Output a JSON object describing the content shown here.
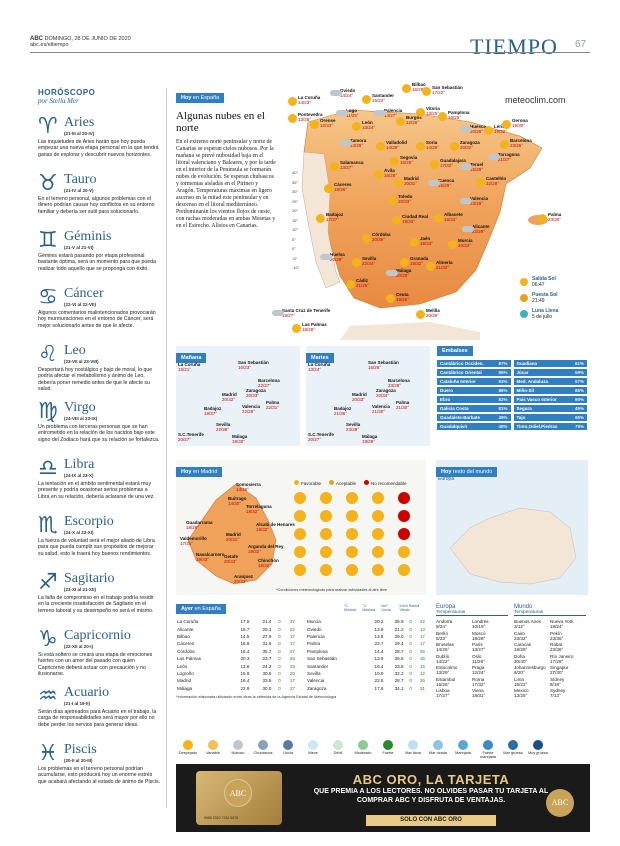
{
  "header": {
    "paper": "ABC",
    "date": "DOMINGO, 28 DE JUNIO DE 2020",
    "site": "abc.es/eltiempo",
    "section": "TIEMPO",
    "page": "67"
  },
  "horoscope": {
    "title": "HORÓSCOPO",
    "author": "por Stella Mer",
    "signs": [
      {
        "glyph": "♈",
        "name": "Aries",
        "dates": "(21-III al 20-IV)",
        "text": "Las inquietudes de Aries harán que hoy pueda empezar una nueva etapa personal en la que tendrá ganas de explorar y descubrir nuevos horizontes."
      },
      {
        "glyph": "♉",
        "name": "Tauro",
        "dates": "(21-IV al 20-V)",
        "text": "En el terreno personal, algunos problemas con el dinero podrían causar hoy conflictos en su entorno familiar y debería ser sutil para solucionarlo."
      },
      {
        "glyph": "♊",
        "name": "Géminis",
        "dates": "(21-V al 21-VI)",
        "text": "Géminis estará pasando por etapa profesional bastante óptima, será un momento para que pueda realizar todo aquello que se proponga con éxito."
      },
      {
        "glyph": "♋",
        "name": "Cáncer",
        "dates": "(22-VI al 22-VII)",
        "text": "Algunos comentarios malintencionados provocarán hoy murmuraciones en el entorno de Cáncer, será mejor solucionarlo antes de que le afecte."
      },
      {
        "glyph": "♌",
        "name": "Leo",
        "dates": "(23-VII al 23-VIII)",
        "text": "Despertará hoy nostálgico y bajo de moral, lo que podría afectar el metabolismo y ánimo de Leo, debería poner remedio antes de que le afecte su salud."
      },
      {
        "glyph": "♍",
        "name": "Virgo",
        "dates": "(24-VIII al 23-IX)",
        "text": "Un problema con terceras personas que se han entrometido en la relación de los nacidos bajo este signo del Zodiaco hará que su relación se fortalezca."
      },
      {
        "glyph": "♎",
        "name": "Libra",
        "dates": "(24-IX al 23-X)",
        "text": "La tentación en el ámbito sentimental estará muy presente y podría ocasionar serios problemas a Libra en su relación, debería aclararse de una vez."
      },
      {
        "glyph": "♏",
        "name": "Escorpio",
        "dates": "(24-X al 22-XI)",
        "text": "La fuerza de voluntad será el mejor aliado de Libra para que pueda cumplir sus propósitos de mejorar su salud, esto le traerá hoy buenos rendimientos."
      },
      {
        "glyph": "♐",
        "name": "Sagitario",
        "dates": "(23-XI al 21-XII)",
        "text": "La falta de compromiso en el trabajo podría residir en la creciente insatisfacción de Sagitario en el terreno laboral y su desempeño no será el mismo."
      },
      {
        "glyph": "♑",
        "name": "Capricornio",
        "dates": "(22-XII al 20-I)",
        "text": "Si está soltero se creará una etapa de emociones fuertes con un amor del pasado con quien Capricornio deberá actuar con precaución y no ilusionarse."
      },
      {
        "glyph": "♒",
        "name": "Acuario",
        "dates": "(21-I al 19-II)",
        "text": "Serán días ajetreados para Acuario en el trabajo, la carga de responsabilidades será mayor por ello no debe perder los nervios para generar ideas."
      },
      {
        "glyph": "♓",
        "name": "Piscis",
        "dates": "(20-II al 20-III)",
        "text": "Los problemas en el terreno personal podrían acumularse, esto producirá hoy un enorme estrés que acabará afectando al estado de ánimo de Piscis."
      }
    ]
  },
  "today": {
    "tag_a": "Hoy",
    "tag_b": "en España",
    "headline": "Algunas nubes en el norte",
    "lead": "En el extremo norte peninsular y norte de Canarias se esperan cielos nubosos. Por la mañana se prevé nubosidad baja en el litoral valenciano y Baleares, y por la tarde en el interior de la Península se formarán nubes de evolución. Se esperan chubascos y tormentas aisladas en el Pirineo y Aragón. Temperaturas máximas en ligero ascenso en la mitad este peninsular y en descenso en el litoral mediterráneo. Predominarán los vientos flojos de oeste, con rachas moderadas en ambas Mesetas y en el Estrecho. Alisios en Canarias.",
    "brand": "meteoclim.com",
    "scale": [
      "40°",
      "35°",
      "30°",
      "25°",
      "20°",
      "15°",
      "10°",
      "5°",
      "0°",
      "-5°",
      "-10°"
    ],
    "cities": [
      {
        "name": "La Coruña",
        "t": "14/23°"
      },
      {
        "name": "Oviedo",
        "t": "14/24°"
      },
      {
        "name": "Santander",
        "t": "15/22°"
      },
      {
        "name": "Bilbao",
        "t": "16/28°"
      },
      {
        "name": "San Sebastián",
        "t": "17/22°"
      },
      {
        "name": "Lugo",
        "t": "11/25°"
      },
      {
        "name": "Pontevedra",
        "t": "13/28°"
      },
      {
        "name": "Orense",
        "t": "12/33°"
      },
      {
        "name": "León",
        "t": "13/24°"
      },
      {
        "name": "Palencia",
        "t": "14/27°"
      },
      {
        "name": "Burgos",
        "t": "12/26°"
      },
      {
        "name": "Vitoria",
        "t": "13/25°"
      },
      {
        "name": "Pamplona",
        "t": "16/25°"
      },
      {
        "name": "Huesca",
        "t": "20/28°"
      },
      {
        "name": "Lérida",
        "t": "19/32°"
      },
      {
        "name": "Gerona",
        "t": "19/30°"
      },
      {
        "name": "Barcelona",
        "t": "23/26°"
      },
      {
        "name": "Zamora",
        "t": "14/28°"
      },
      {
        "name": "Valladolid",
        "t": "14/28°"
      },
      {
        "name": "Soria",
        "t": "14/26°"
      },
      {
        "name": "Zaragoza",
        "t": "20/32°"
      },
      {
        "name": "Tarragona",
        "t": "21/27°"
      },
      {
        "name": "Salamanca",
        "t": "13/27°"
      },
      {
        "name": "Segovia",
        "t": "15/26°"
      },
      {
        "name": "Guadalajara",
        "t": "17/32°"
      },
      {
        "name": "Teruel",
        "t": "15/29°"
      },
      {
        "name": "Castellón",
        "t": "22/29°"
      },
      {
        "name": "Ávila",
        "t": "16/28°"
      },
      {
        "name": "Madrid",
        "t": "20/31°"
      },
      {
        "name": "Cuenca",
        "t": "16/29°"
      },
      {
        "name": "Palma",
        "t": "23/30°"
      },
      {
        "name": "Cáceres",
        "t": "18/36°"
      },
      {
        "name": "Toledo",
        "t": "20/33°"
      },
      {
        "name": "Valencia",
        "t": "23/28°"
      },
      {
        "name": "Badajoz",
        "t": "17/37°"
      },
      {
        "name": "Ciudad Real",
        "t": "19/33°"
      },
      {
        "name": "Albacete",
        "t": "16/32°"
      },
      {
        "name": "Alicante",
        "t": "22/29°"
      },
      {
        "name": "Córdoba",
        "t": "20/36°"
      },
      {
        "name": "Jaén",
        "t": "19/33°"
      },
      {
        "name": "Murcia",
        "t": "20/33°"
      },
      {
        "name": "Huelva",
        "t": "20/29°"
      },
      {
        "name": "Sevilla",
        "t": "22/34°"
      },
      {
        "name": "Granada",
        "t": "19/32°"
      },
      {
        "name": "Almería",
        "t": "21/32°"
      },
      {
        "name": "Málaga",
        "t": "20/28°"
      },
      {
        "name": "Cádiz",
        "t": "21/25°"
      },
      {
        "name": "Ceuta",
        "t": "19/25°"
      },
      {
        "name": "Melilla",
        "t": "20/26°"
      },
      {
        "name": "Santa Cruz de Tenerife",
        "t": "19/27°"
      },
      {
        "name": "Las Palmas",
        "t": "18/28°"
      }
    ],
    "astro": [
      {
        "label": "Salida Sol",
        "value": "06:47",
        "color": "#f4b21b"
      },
      {
        "label": "Puesta Sol",
        "value": "21:49",
        "color": "#e8a020"
      },
      {
        "label": "Luna Llena",
        "value": "5 de julio",
        "color": "#3db0c6"
      }
    ]
  },
  "tomorrow": {
    "tag": "Mañana",
    "cities": [
      {
        "name": "La Coruña",
        "t": "15/21°"
      },
      {
        "name": "San Sebastián",
        "t": "16/23°"
      },
      {
        "name": "Barcelona",
        "t": "22/27°"
      },
      {
        "name": "Zaragoza",
        "t": "20/33°"
      },
      {
        "name": "Madrid",
        "t": "20/32°"
      },
      {
        "name": "Palma",
        "t": "22/31°"
      },
      {
        "name": "Valencia",
        "t": "22/28°"
      },
      {
        "name": "Badajoz",
        "t": "19/37°"
      },
      {
        "name": "Sevilla",
        "t": "22/38°"
      },
      {
        "name": "S.C.Tenerife",
        "t": "20/27°"
      },
      {
        "name": "Málaga",
        "t": "19/30°"
      }
    ]
  },
  "tuesday": {
    "tag": "Martes",
    "cities": [
      {
        "name": "La Coruña",
        "t": "13/24°"
      },
      {
        "name": "San Sebastián",
        "t": "15/26°"
      },
      {
        "name": "Barcelona",
        "t": "23/28°"
      },
      {
        "name": "Zaragoza",
        "t": "20/34°"
      },
      {
        "name": "Madrid",
        "t": "20/33°"
      },
      {
        "name": "Palma",
        "t": "21/30°"
      },
      {
        "name": "Valencia",
        "t": "21/30°"
      },
      {
        "name": "Badajoz",
        "t": "21/36°"
      },
      {
        "name": "Sevilla",
        "t": "23/38°"
      },
      {
        "name": "S.C.Tenerife",
        "t": "20/27°"
      },
      {
        "name": "Málaga",
        "t": "19/29°"
      }
    ]
  },
  "reservoirs": {
    "tag": "Embalses",
    "items": [
      {
        "name": "Cantábrico Occiden.",
        "pct": "87%"
      },
      {
        "name": "Guadiana",
        "pct": "61%"
      },
      {
        "name": "Cantábrico Oriental",
        "pct": "95%"
      },
      {
        "name": "Júcar",
        "pct": "59%"
      },
      {
        "name": "Cataluña Interior",
        "pct": "93%"
      },
      {
        "name": "Med. Andaluza",
        "pct": "57%"
      },
      {
        "name": "Duero",
        "pct": "86%"
      },
      {
        "name": "Miño-Sil",
        "pct": "85%"
      },
      {
        "name": "Ebro",
        "pct": "82%"
      },
      {
        "name": "País Vasco Interior",
        "pct": "90%"
      },
      {
        "name": "Galicia Costa",
        "pct": "81%"
      },
      {
        "name": "Segura",
        "pct": "49%"
      },
      {
        "name": "Guadalete-Barbate",
        "pct": "49%"
      },
      {
        "name": "Tajo",
        "pct": "65%"
      },
      {
        "name": "Guadalquivir",
        "pct": "48%"
      },
      {
        "name": "Tinto,Odiel,Piedras",
        "pct": "79%"
      }
    ]
  },
  "madrid": {
    "tag_a": "Hoy",
    "tag_b": "en Madrid",
    "legend": [
      "Favorable",
      "Aceptable",
      "No recomendable"
    ],
    "cities": [
      {
        "name": "Somosierra",
        "t": "14/26°"
      },
      {
        "name": "Buitrago",
        "t": "14/30°"
      },
      {
        "name": "Torrelaguna",
        "t": "18/32°"
      },
      {
        "name": "Guadarrama",
        "t": "18/29°"
      },
      {
        "name": "Alcalá de Henares",
        "t": "18/32°"
      },
      {
        "name": "Valdemorillo",
        "t": "17/31°"
      },
      {
        "name": "Madrid",
        "t": "20/31°"
      },
      {
        "name": "Arganda del Rey",
        "t": "19/32°"
      },
      {
        "name": "Navalcarnero",
        "t": "19/33°"
      },
      {
        "name": "Getafe",
        "t": "20/33°"
      },
      {
        "name": "Chinchón",
        "t": "18/32°"
      },
      {
        "name": "Aranjuez",
        "t": "20/33°"
      }
    ],
    "footnote": "*Condiciones meteorológicas para realizar actividades al aire libre"
  },
  "world": {
    "tag_a": "Hoy",
    "tag_b": "resto del mundo",
    "region": "Europa"
  },
  "yesterday": {
    "tag_a": "Ayer",
    "tag_b": "en España",
    "col_heads": [
      "°C Mínima",
      "°C Máxima",
      "l/m² Lluvia",
      "Km/h Racha Viento"
    ],
    "left": [
      [
        "La Coruña",
        "17.5",
        "21.4",
        "0",
        "27"
      ],
      [
        "Alicante",
        "19.7",
        "29.1",
        "0",
        "22"
      ],
      [
        "Bilbao",
        "14.5",
        "27.9",
        "0",
        "17"
      ],
      [
        "Cáceres",
        "16.8",
        "31.6",
        "0",
        "17"
      ],
      [
        "Córdoba",
        "16.4",
        "35.7",
        "0",
        "27"
      ],
      [
        "Las Palmas",
        "20.3",
        "23.7",
        "0",
        "26"
      ],
      [
        "León",
        "13.6",
        "24.2",
        "0",
        "29"
      ],
      [
        "Logroño",
        "15.9",
        "30.6",
        "0",
        "20"
      ],
      [
        "Madrid",
        "16.4",
        "33.5",
        "0",
        "17"
      ],
      [
        "Málaga",
        "22.9",
        "30.0",
        "0",
        "27"
      ]
    ],
    "right": [
      [
        "Murcia",
        "20.2",
        "36.9",
        "0",
        "22"
      ],
      [
        "Oviedo",
        "13.9",
        "21.2",
        "0",
        "13"
      ],
      [
        "Palencia",
        "13.8",
        "29.0",
        "0",
        "17"
      ],
      [
        "Palma",
        "23.7",
        "29.4",
        "0",
        "17"
      ],
      [
        "Pamplona",
        "14.4",
        "28.7",
        "0",
        "26"
      ],
      [
        "San Sebastián",
        "13.9",
        "26.5",
        "0",
        "16"
      ],
      [
        "Santander",
        "16.4",
        "23.5",
        "0",
        "15"
      ],
      [
        "Sevilla",
        "19.9",
        "32.2",
        "0",
        "12"
      ],
      [
        "Valencia",
        "22.5",
        "28.7",
        "0",
        "26"
      ],
      [
        "Zaragoza",
        "17.6",
        "34.1",
        "0",
        "31"
      ]
    ],
    "footnote": "*Información elaborada utilizando entre otras la obtenida de la Agencia Estatal de Meteorología"
  },
  "europe": {
    "title": "Europa",
    "subtitle": "Temperaturas",
    "rows": [
      [
        [
          "Andorra",
          "9/24°"
        ],
        [
          "Londres",
          "10/19°"
        ]
      ],
      [
        [
          "Berlín",
          "8/23°"
        ],
        [
          "Moscú",
          "18/28°"
        ]
      ],
      [
        [
          "Bruselas",
          "14/25°"
        ],
        [
          "París",
          "13/27°"
        ]
      ],
      [
        [
          "Dublín",
          "14/22°"
        ],
        [
          "Oslo",
          "11/26°"
        ]
      ],
      [
        [
          "Estocolmo",
          "13/29°"
        ],
        [
          "Praga",
          "12/24°"
        ]
      ],
      [
        [
          "Estambul",
          "16/26°"
        ],
        [
          "Roma",
          "17/32°"
        ]
      ],
      [
        [
          "Lisboa",
          "17/27°"
        ],
        [
          "Viena",
          "18/31°"
        ]
      ]
    ]
  },
  "world_temps": {
    "title": "Mundo",
    "subtitle": "Temperaturas",
    "rows": [
      [
        [
          "Buenos Aires",
          "3/12°"
        ],
        [
          "Nueva York",
          "18/24°"
        ]
      ],
      [
        [
          "Cairo",
          "23/32°"
        ],
        [
          "Pekín",
          "23/35°"
        ]
      ],
      [
        [
          "Caracas",
          "18/28°"
        ],
        [
          "Rabat",
          "23/36°"
        ]
      ],
      [
        [
          "Doha",
          "30/40°"
        ],
        [
          "Río Janeiro",
          "17/28°"
        ]
      ],
      [
        [
          "Johannesburgo",
          "6/20°"
        ],
        [
          "Singapur",
          "27/30°"
        ]
      ],
      [
        [
          "Lima",
          "16/22°"
        ],
        [
          "Sídney",
          "8/18°"
        ]
      ],
      [
        [
          "Mexico",
          "13/25°"
        ],
        [
          "Sydney",
          "7/13°"
        ]
      ]
    ]
  },
  "legend": [
    "Despejado",
    "Variable",
    "Nuboso",
    "Chubascos",
    "Lluvia",
    "Nieve",
    "Débil",
    "Moderado",
    "Fuerte",
    "Mar llana",
    "Mar rizada",
    "Marejada",
    "Fuerte marejada",
    "Mar gruesa",
    "Muy gruesa"
  ],
  "ad": {
    "headline": "ABC ORO, LA TARJETA",
    "body": "QUE PREMIA A LOS LECTORES. NO OLVIDES PASAR TU TARJETA AL COMPRAR ABC Y DISFRUTA DE VENTAJAS.",
    "cta": "SOLO CON ABC ORO",
    "card_logo": "ABC",
    "card_number": "9985 2020 7234 5678",
    "logo": "ABC"
  }
}
